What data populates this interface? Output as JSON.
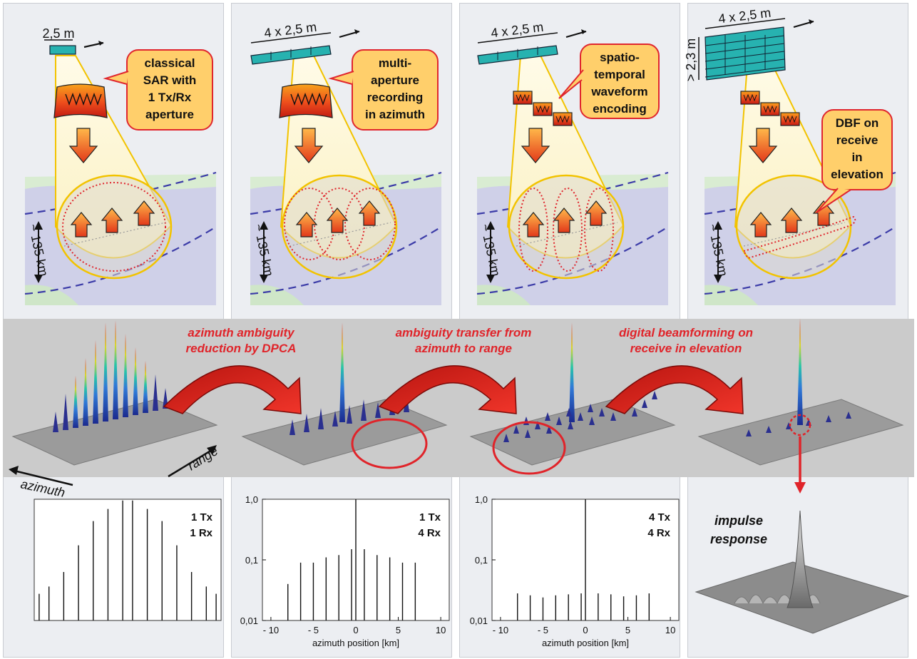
{
  "panels": [
    {
      "id": "classical",
      "antenna_label": "2,5 m",
      "bubble_lines": [
        "classical",
        "SAR with",
        "1 Tx/Rx",
        "aperture"
      ],
      "swath_label": "~ 135 km"
    },
    {
      "id": "multi-aperture",
      "antenna_label": "4 x 2,5 m",
      "bubble_lines": [
        "multi-",
        "aperture",
        "recording",
        "in azimuth"
      ],
      "swath_label": "~ 135 km"
    },
    {
      "id": "waveform",
      "antenna_label": "4 x 2,5 m",
      "bubble_lines": [
        "spatio-",
        "temporal",
        "waveform",
        "encoding"
      ],
      "swath_label": "~ 135 km"
    },
    {
      "id": "dbf",
      "antenna_label": "4 x 2,5 m",
      "height_label": "> 2,3 m",
      "bubble_lines": [
        "DBF on",
        "receive",
        "in",
        "elevation"
      ],
      "swath_label": "~ 135 km"
    }
  ],
  "transitions": [
    {
      "lines": [
        "azimuth ambiguity",
        "reduction by DPCA"
      ]
    },
    {
      "lines": [
        "ambiguity transfer from",
        "azimuth to range"
      ]
    },
    {
      "lines": [
        "digital beamforming on",
        "receive in elevation"
      ]
    }
  ],
  "axis_words": {
    "azimuth": "azimuth",
    "range": "range"
  },
  "impulse_label": [
    "impulse",
    "response"
  ],
  "colors": {
    "accent_red": "#e0242a",
    "swath_blue": "#3c3ca8",
    "antenna_teal": "#27b2b0",
    "bubble_fill": "#ffcf6b",
    "bubble_stroke": "#e0262e"
  },
  "chart_data": [
    {
      "type": "bar",
      "label_lines": [
        "1 Tx",
        "1 Rx"
      ],
      "x": [
        -9,
        -8,
        -6.5,
        -5,
        -3.5,
        -2,
        -0.5,
        0.5,
        2,
        3.5,
        5,
        6.5,
        8,
        9
      ],
      "values": [
        0.22,
        0.28,
        0.4,
        0.62,
        0.82,
        0.92,
        0.99,
        0.99,
        0.92,
        0.82,
        0.62,
        0.4,
        0.28,
        0.22
      ],
      "yscale": "linear",
      "xlim": [
        -9.5,
        9.5
      ],
      "ylim": [
        0,
        1
      ],
      "yticks": [],
      "xticks": [],
      "xlabel": ""
    },
    {
      "type": "bar",
      "label_lines": [
        "1 Tx",
        "4 Rx"
      ],
      "x": [
        -8,
        -6.5,
        -5,
        -3.5,
        -2,
        -0.5,
        0,
        1,
        2.5,
        4,
        5.5,
        7
      ],
      "values": [
        0.04,
        0.09,
        0.09,
        0.11,
        0.12,
        0.15,
        1.0,
        0.15,
        0.12,
        0.11,
        0.09,
        0.09
      ],
      "yscale": "log",
      "ylim": [
        0.01,
        1.0
      ],
      "xlim": [
        -11,
        11
      ],
      "yticks": [
        "0,01",
        "0,1",
        "1,0"
      ],
      "xticks": [
        "- 10",
        "- 5",
        "0",
        "5",
        "10"
      ],
      "xlabel": "azimuth position [km]"
    },
    {
      "type": "bar",
      "label_lines": [
        "4 Tx",
        "4 Rx"
      ],
      "x": [
        -8,
        -6.5,
        -5,
        -3.5,
        -2,
        -0.5,
        0,
        1.5,
        3,
        4.5,
        6,
        7.5
      ],
      "values": [
        0.028,
        0.026,
        0.024,
        0.026,
        0.027,
        0.028,
        1.0,
        0.028,
        0.027,
        0.025,
        0.026,
        0.028
      ],
      "yscale": "log",
      "ylim": [
        0.01,
        1.0
      ],
      "xlim": [
        -11,
        11
      ],
      "yticks": [
        "0,01",
        "0,1",
        "1,0"
      ],
      "xticks": [
        "- 10",
        "- 5",
        "0",
        "5",
        "10"
      ],
      "xlabel": "azimuth position [km]"
    }
  ]
}
